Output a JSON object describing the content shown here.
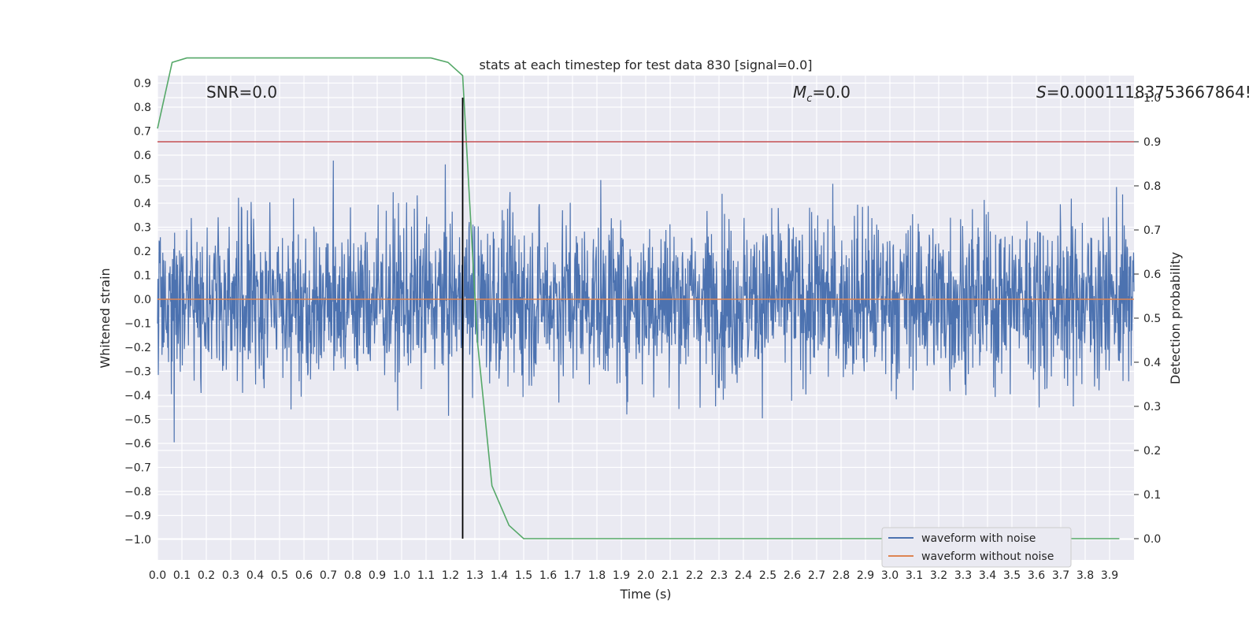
{
  "chart_data": {
    "type": "line",
    "title": "stats at each timestep for test data 830 [signal=0.0]",
    "xlabel": "Time (s)",
    "ylabel": "Whitened strain",
    "y2label": "Detection probability",
    "xlim": [
      0.0,
      4.0
    ],
    "ylim": [
      -1.09,
      0.93
    ],
    "y2lim": [
      -0.05,
      1.05
    ],
    "x_ticks": [
      "0.0",
      "0.1",
      "0.2",
      "0.3",
      "0.4",
      "0.5",
      "0.6",
      "0.7",
      "0.8",
      "0.9",
      "1.0",
      "1.1",
      "1.2",
      "1.3",
      "1.4",
      "1.5",
      "1.6",
      "1.7",
      "1.8",
      "1.9",
      "2.0",
      "2.1",
      "2.2",
      "2.3",
      "2.4",
      "2.5",
      "2.6",
      "2.7",
      "2.8",
      "2.9",
      "3.0",
      "3.1",
      "3.2",
      "3.3",
      "3.4",
      "3.5",
      "3.6",
      "3.7",
      "3.8",
      "3.9"
    ],
    "y_ticks": [
      "0.9",
      "0.8",
      "0.7",
      "0.6",
      "0.5",
      "0.4",
      "0.3",
      "0.2",
      "0.1",
      "0.0",
      "−0.1",
      "−0.2",
      "−0.3",
      "−0.4",
      "−0.5",
      "−0.6",
      "−0.7",
      "−0.8",
      "−0.9",
      "−1.0"
    ],
    "y2_ticks": [
      "1.0",
      "0.9",
      "0.8",
      "0.7",
      "0.6",
      "0.5",
      "0.4",
      "0.3",
      "0.2",
      "0.1",
      "0.0"
    ],
    "annotations": [
      {
        "text": "SNR=0.0",
        "x": 0.2
      },
      {
        "text": "M_c=0.0",
        "x": 2.6
      },
      {
        "text": "S=0.00011183753667864!",
        "x": 3.6
      }
    ],
    "vline_x": 1.25,
    "threshold": 0.9,
    "series": [
      {
        "name": "waveform with noise",
        "color": "#4c72b0",
        "axis": "left",
        "kind": "noise",
        "amplitude_range": [
          -1.0,
          0.84
        ]
      },
      {
        "name": "waveform without noise",
        "color": "#dd8452",
        "axis": "left",
        "x": [
          0.0,
          4.0
        ],
        "y": [
          0.0,
          0.0
        ]
      },
      {
        "name": "",
        "color": "#55a868",
        "axis": "right",
        "x": [
          0.0,
          0.06,
          0.12,
          0.19,
          0.25,
          0.31,
          0.37,
          0.44,
          0.5,
          0.56,
          0.62,
          0.69,
          0.75,
          0.81,
          0.87,
          0.94,
          1.0,
          1.06,
          1.12,
          1.19,
          1.25,
          1.31,
          1.37,
          1.44,
          1.5,
          1.56,
          1.62,
          1.69,
          1.75,
          1.81,
          1.87,
          1.94,
          2.0,
          2.5,
          3.0,
          3.5,
          3.94
        ],
        "y": [
          0.93,
          1.08,
          1.09,
          1.09,
          1.09,
          1.09,
          1.09,
          1.09,
          1.09,
          1.09,
          1.09,
          1.09,
          1.09,
          1.09,
          1.09,
          1.09,
          1.09,
          1.09,
          1.09,
          1.08,
          1.05,
          0.45,
          0.12,
          0.03,
          0.0,
          0.0,
          0.0,
          0.0,
          0.0,
          0.0,
          0.0,
          0.0,
          0.0,
          0.0,
          0.0,
          0.0,
          0.0
        ]
      },
      {
        "name": "",
        "color": "#c44e52",
        "axis": "right",
        "x": [
          0.0,
          4.0
        ],
        "y": [
          0.9,
          0.9
        ]
      }
    ],
    "legend": {
      "placement": "lower-right",
      "entries": [
        "waveform with noise",
        "waveform without noise"
      ]
    },
    "grid": true
  }
}
